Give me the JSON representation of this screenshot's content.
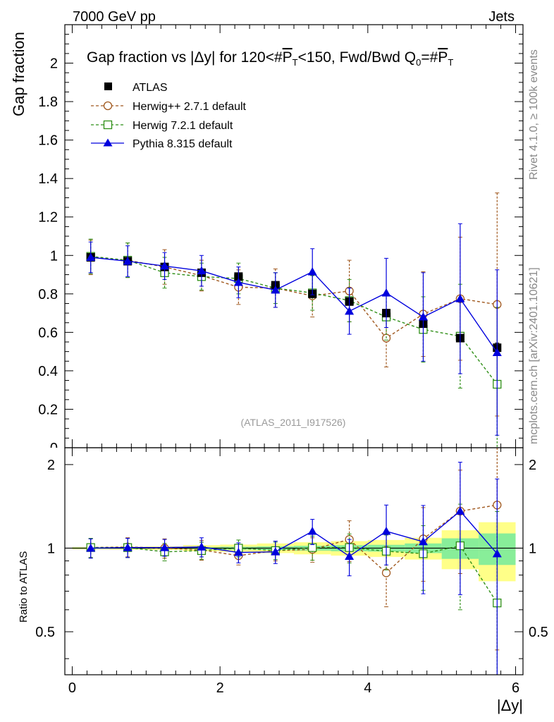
{
  "header": {
    "left": "7000 GeV pp",
    "right": "Jets",
    "side_top": "Rivet 4.1.0, ≥ 100k events",
    "side_bottom": "mcplots.cern.ch [arXiv:2401.10621]"
  },
  "colors": {
    "data": "#000000",
    "herwigpp": "#a0581e",
    "herwig7": "#2f8f17",
    "pythia": "#0000dd",
    "band_inner": "#88ee99",
    "band_outer": "#ffff88"
  },
  "chart_data": {
    "type": "scatter",
    "title": "Gap fraction vs |Δy| for 120<#P̅T<150, Fwd/Bwd Q0=#P̅T",
    "title_parts": {
      "prefix": "Gap fraction vs |Δy| for 120<#",
      "p1": "P",
      "t1": "T",
      "middle": "<150, Fwd/Bwd Q",
      "q_sub": "0",
      "eq": "=#",
      "p2": "P",
      "t2": "T"
    },
    "xlabel": "|Δy|",
    "ylabel": "Gap fraction",
    "ratio_ylabel": "Ratio to ATLAS",
    "watermark": "(ATLAS_2011_I917526)",
    "xlim": [
      -0.1,
      6.1
    ],
    "ylim": [
      0,
      2.2
    ],
    "ratio_ylim": [
      0.35,
      2.3
    ],
    "x_ticks": [
      "0",
      "2",
      "4",
      "6"
    ],
    "y_ticks": [
      "0.2",
      "0.4",
      "0.6",
      "0.8",
      "1",
      "1.2",
      "1.4",
      "1.6",
      "1.8",
      "2"
    ],
    "ratio_ticks": [
      "0.5",
      "1",
      "2"
    ],
    "x": [
      0.25,
      0.75,
      1.25,
      1.75,
      2.25,
      2.75,
      3.25,
      3.75,
      4.25,
      4.75,
      5.25,
      5.75
    ],
    "series": [
      {
        "name": "ATLAS",
        "key": "data",
        "style": "square",
        "values": [
          0.99,
          0.97,
          0.94,
          0.91,
          0.89,
          0.845,
          0.8,
          0.76,
          0.7,
          0.645,
          0.57,
          0.52
        ],
        "errors": [
          0.003,
          0.003,
          0.003,
          0.004,
          0.005,
          0.006,
          0.008,
          0.01,
          0.013,
          0.017,
          0.02,
          0.025
        ]
      },
      {
        "name": "Herwig++ 2.7.1 default",
        "key": "herwigpp",
        "style": "circle",
        "values": [
          0.99,
          0.975,
          0.94,
          0.895,
          0.835,
          0.83,
          0.79,
          0.815,
          0.57,
          0.695,
          0.775,
          0.745
        ],
        "errors": [
          0.09,
          0.09,
          0.09,
          0.08,
          0.09,
          0.1,
          0.11,
          0.16,
          0.15,
          0.22,
          0.32,
          0.58
        ]
      },
      {
        "name": "Herwig 7.2.1 default",
        "key": "herwig7",
        "style": "open-square",
        "values": [
          0.995,
          0.975,
          0.91,
          0.89,
          0.88,
          0.83,
          0.805,
          0.765,
          0.68,
          0.615,
          0.58,
          0.33
        ],
        "errors": [
          0.09,
          0.09,
          0.08,
          0.07,
          0.08,
          0.08,
          0.09,
          0.11,
          0.12,
          0.17,
          0.27,
          0.4
        ]
      },
      {
        "name": "Pythia 8.315 default",
        "key": "pythia",
        "style": "triangle",
        "values": [
          0.99,
          0.97,
          0.945,
          0.92,
          0.86,
          0.82,
          0.915,
          0.71,
          0.805,
          0.68,
          0.775,
          0.495
        ],
        "errors": [
          0.08,
          0.08,
          0.07,
          0.08,
          0.08,
          0.09,
          0.12,
          0.12,
          0.18,
          0.23,
          0.39,
          0.43
        ]
      }
    ],
    "ratio_series": [
      {
        "key": "herwigpp",
        "values": [
          1.005,
          1.01,
          1.0,
          0.985,
          0.94,
          0.98,
          0.99,
          1.075,
          0.815,
          1.08,
          1.36,
          1.43
        ],
        "errors": [
          0.08,
          0.08,
          0.08,
          0.08,
          0.07,
          0.08,
          0.1,
          0.18,
          0.2,
          0.32,
          0.55,
          1.0
        ]
      },
      {
        "key": "herwig7",
        "values": [
          1.005,
          1.005,
          0.97,
          0.98,
          1.0,
          0.98,
          1.005,
          1.005,
          0.975,
          0.955,
          1.02,
          0.635
        ],
        "errors": [
          0.08,
          0.08,
          0.07,
          0.07,
          0.07,
          0.07,
          0.1,
          0.12,
          0.14,
          0.25,
          0.42,
          0.72
        ]
      },
      {
        "key": "pythia",
        "values": [
          1.0,
          1.005,
          1.005,
          1.01,
          0.965,
          0.97,
          1.15,
          0.935,
          1.15,
          1.055,
          1.36,
          0.955
        ],
        "errors": [
          0.08,
          0.08,
          0.07,
          0.08,
          0.08,
          0.09,
          0.12,
          0.14,
          0.28,
          0.37,
          0.68,
          0.82
        ]
      }
    ],
    "band_inner": [
      0.005,
      0.005,
      0.005,
      0.008,
      0.012,
      0.015,
      0.02,
      0.025,
      0.028,
      0.04,
      0.085,
      0.13
    ],
    "band_outer": [
      0.01,
      0.012,
      0.015,
      0.025,
      0.03,
      0.04,
      0.05,
      0.06,
      0.07,
      0.09,
      0.16,
      0.24
    ]
  }
}
